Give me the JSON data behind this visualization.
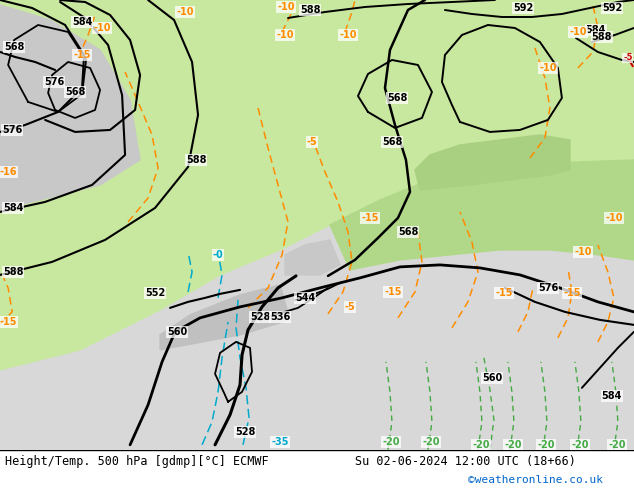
{
  "title_left": "Height/Temp. 500 hPa [gdmp][°C] ECMWF",
  "title_right": "Su 02-06-2024 12:00 UTC (18+66)",
  "watermark": "©weatheronline.co.uk",
  "bg_white": "#ffffff",
  "bg_land_light": "#c8e8a0",
  "bg_land_mid": "#b8d890",
  "bg_sea_gray": "#d0d0d0",
  "contour_color": "#000000",
  "temp_color": "#ff8c00",
  "cyan_color": "#00aacc",
  "red_color": "#cc0000",
  "green_color": "#44aa44",
  "watermark_color": "#0066cc"
}
